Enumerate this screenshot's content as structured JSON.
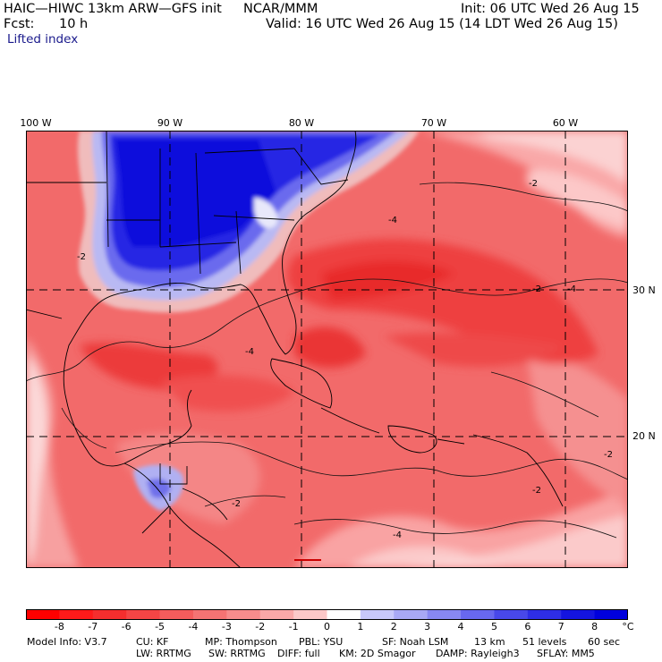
{
  "header": {
    "model_title": "HAIC—HIWC 13km ARW—GFS init",
    "org": "NCAR/MMM",
    "init": "Init: 06 UTC Wed 26 Aug 15",
    "fcst_label": "Fcst:",
    "fcst_value": "10 h",
    "valid": "Valid: 16 UTC Wed 26 Aug 15 (14 LDT Wed 26 Aug 15)",
    "field": "Lifted index"
  },
  "map": {
    "longitude_labels": [
      "100 W",
      "90 W",
      "80 W",
      "70 W",
      "60 W"
    ],
    "latitude_labels": [
      "30 N",
      "20 N"
    ],
    "contour_labels": [
      "-2",
      "-4",
      "-2",
      "-2",
      "-4",
      "-4",
      "-2",
      "-4",
      "-2",
      "-2"
    ],
    "description_colors": {
      "stable_blue": "#1414e0",
      "unstable_red": "#f04848",
      "neutral_pink": "#fbd2d2"
    }
  },
  "colorbar": {
    "labels": [
      "-8",
      "-7",
      "-6",
      "-5",
      "-4",
      "-3",
      "-2",
      "-1",
      "0",
      "1",
      "2",
      "3",
      "4",
      "5",
      "6",
      "7",
      "8"
    ],
    "unit": "°C",
    "colors": [
      "#ff0000",
      "#ff1a1a",
      "#f52e2e",
      "#f54545",
      "#f55c5c",
      "#f57373",
      "#f78c8c",
      "#faa8a8",
      "#fcc8c8",
      "#ffffff",
      "#c8c8fa",
      "#a8a8f5",
      "#8888f2",
      "#6868ef",
      "#4848ea",
      "#2e2ee6",
      "#1414e0",
      "#0000dd"
    ]
  },
  "footer": {
    "line1": [
      "Model Info: V3.7",
      "CU: KF",
      "MP: Thompson",
      "PBL: YSU",
      "SF: Noah LSM",
      "13 km",
      "51 levels",
      "60 sec"
    ],
    "line2": [
      "LW: RRTMG",
      "SW: RRTMG",
      "DIFF: full",
      "KM: 2D Smagor",
      "DAMP: Rayleigh3",
      "SFLAY: MM5"
    ]
  }
}
